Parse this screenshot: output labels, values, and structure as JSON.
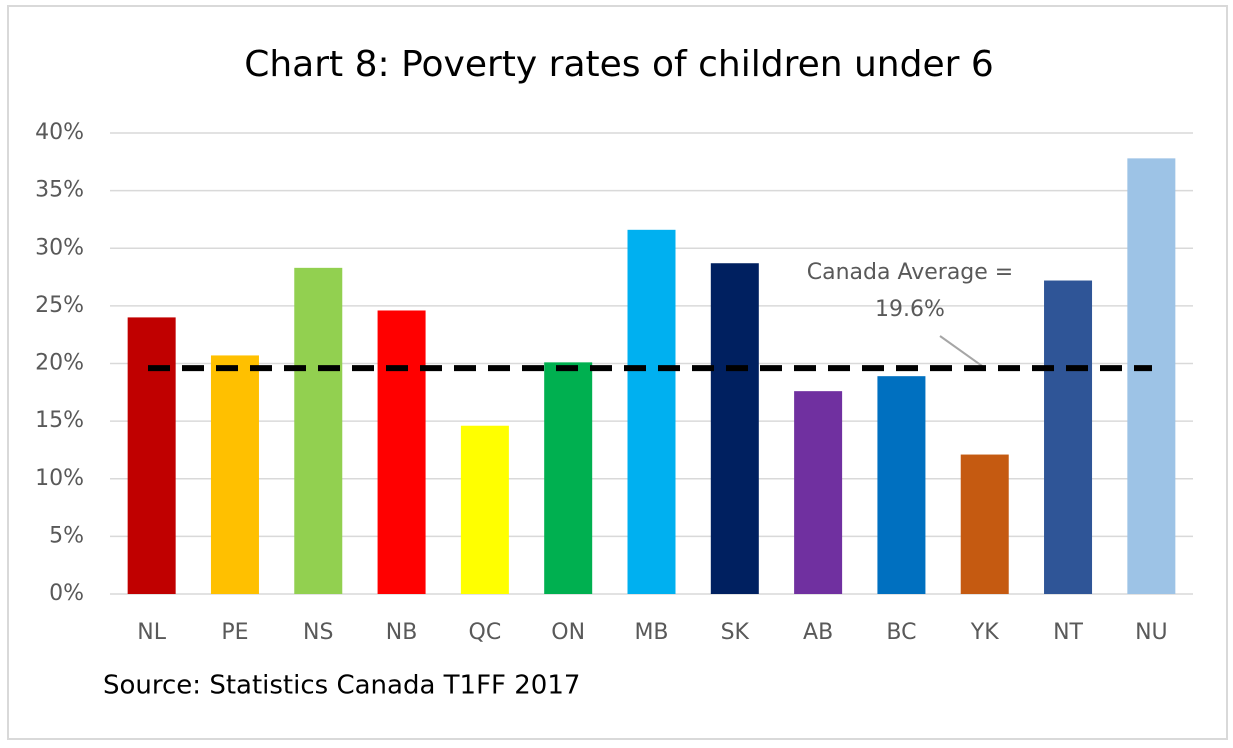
{
  "chart_data": {
    "type": "bar",
    "title": "Chart 8: Poverty rates of children under 6",
    "categories": [
      "NL",
      "PE",
      "NS",
      "NB",
      "QC",
      "ON",
      "MB",
      "SK",
      "AB",
      "BC",
      "YK",
      "NT",
      "NU"
    ],
    "values": [
      24.0,
      20.7,
      28.3,
      24.6,
      14.6,
      20.1,
      31.6,
      28.7,
      17.6,
      18.9,
      12.1,
      27.2,
      37.8
    ],
    "colors": [
      "#c00000",
      "#ffc000",
      "#92d050",
      "#ff0000",
      "#ffff00",
      "#00b050",
      "#00b0f0",
      "#002060",
      "#7030a0",
      "#0070c0",
      "#c55a11",
      "#2f5597",
      "#9dc3e6"
    ],
    "ylim": [
      0,
      40
    ],
    "yticks": [
      {
        "value": 0,
        "label": "0%"
      },
      {
        "value": 5,
        "label": "5%"
      },
      {
        "value": 10,
        "label": "10%"
      },
      {
        "value": 15,
        "label": "15%"
      },
      {
        "value": 20,
        "label": "20%"
      },
      {
        "value": 25,
        "label": "25%"
      },
      {
        "value": 30,
        "label": "30%"
      },
      {
        "value": 35,
        "label": "35%"
      },
      {
        "value": 40,
        "label": "40%"
      }
    ],
    "grid": true,
    "average": {
      "value": 19.6,
      "label_lines": [
        "Canada Average =",
        "19.6%"
      ]
    },
    "source": "Source: Statistics Canada T1FF 2017"
  }
}
